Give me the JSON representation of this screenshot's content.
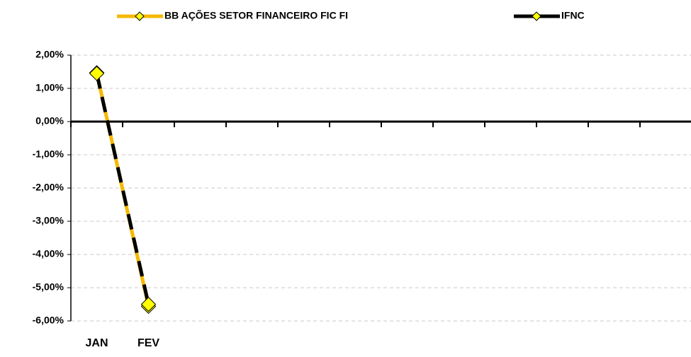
{
  "chart_data": {
    "type": "line",
    "categories": [
      "JAN",
      "FEV",
      null,
      null,
      null,
      null,
      null,
      null,
      null,
      null,
      null,
      null
    ],
    "series": [
      {
        "name": "BB AÇÕES SETOR FINANCEIRO FIC FI",
        "color": "#f5b800",
        "values": [
          1.47,
          -5.56,
          null,
          null,
          null,
          null,
          null,
          null,
          null,
          null,
          null,
          null
        ]
      },
      {
        "name": "IFNC",
        "color": "#000000",
        "values": [
          1.45,
          -5.5,
          null,
          null,
          null,
          null,
          null,
          null,
          null,
          null,
          null,
          null
        ]
      }
    ],
    "marker_color": "#ffff00",
    "ylim": [
      -6,
      2
    ],
    "yticks": [
      {
        "value": -6,
        "label": "-6,00%"
      },
      {
        "value": -5,
        "label": "-5,00%"
      },
      {
        "value": -4,
        "label": "-4,00%"
      },
      {
        "value": -3,
        "label": "-3,00%"
      },
      {
        "value": -2,
        "label": "-2,00%"
      },
      {
        "value": -1,
        "label": "-1,00%"
      },
      {
        "value": 0,
        "label": "0,00%"
      },
      {
        "value": 1,
        "label": "1,00%"
      },
      {
        "value": 2,
        "label": "2,00%"
      }
    ],
    "grid": true,
    "legend": "top"
  }
}
